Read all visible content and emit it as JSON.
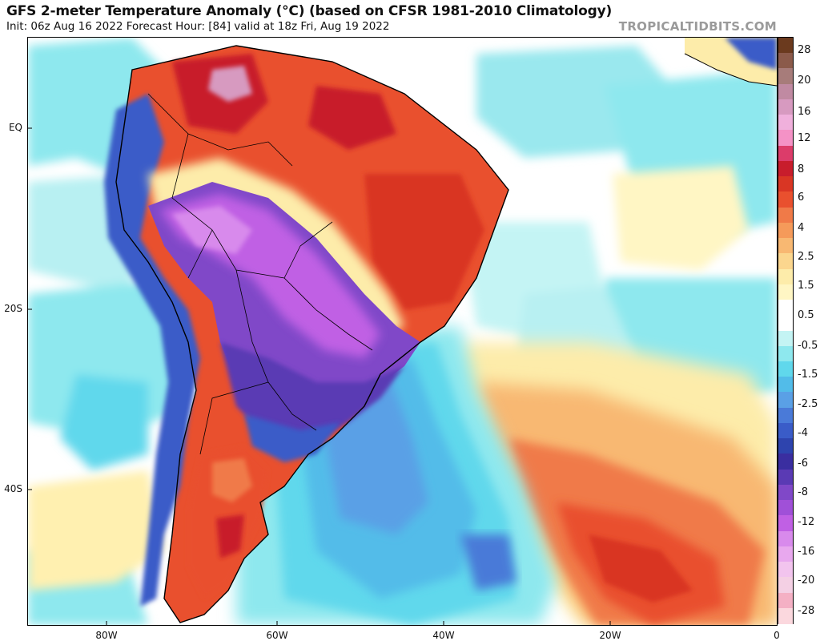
{
  "header": {
    "title": "GFS 2-meter Temperature Anomaly (°C) (based on CFSR 1981-2010 Climatology)",
    "subtitle": "Init: 06z Aug 16 2022   Forecast Hour: [84]   valid at 18z Fri, Aug 19 2022",
    "brand": "TROPICALTIDBITS.COM"
  },
  "axes": {
    "lat_labels": [
      "EQ",
      "20S",
      "40S"
    ],
    "lon_labels": [
      "80W",
      "60W",
      "40W",
      "20W",
      "0"
    ]
  },
  "colorbar": {
    "labels": [
      "28",
      "20",
      "16",
      "12",
      "8",
      "6",
      "4",
      "2.5",
      "1.5",
      "0.5",
      "-0.5",
      "-1.5",
      "-2.5",
      "-4",
      "-6",
      "-8",
      "-12",
      "-16",
      "-20",
      "-28"
    ],
    "colors": [
      "#6b3a1e",
      "#8b5a4a",
      "#a77c7a",
      "#c08aa2",
      "#d79ac0",
      "#f0b0dc",
      "#f492c6",
      "#dc3c6a",
      "#c81d2c",
      "#d93624",
      "#e9502e",
      "#f07a48",
      "#f59a5a",
      "#f8b872",
      "#fbd68e",
      "#fdecaa",
      "#fff6c4",
      "#ffffff",
      "#ffffff",
      "#c4f4f4",
      "#8ee8ee",
      "#60d8ec",
      "#52bce9",
      "#5aa0e6",
      "#4a7ad8",
      "#3a5cc8",
      "#2e44ae",
      "#3a2ea0",
      "#5a3ab4",
      "#8048c8",
      "#a050d8",
      "#c060e4",
      "#d88aec",
      "#e8a8ee",
      "#f2c4ee",
      "#f4d0e4",
      "#f4b0c4",
      "#fbd8de"
    ]
  },
  "palette": {
    "ocean_cyan": "#8ee8ee",
    "ocean_light": "#c4f4f4",
    "land_warm": "#e9502e",
    "land_hot": "#c81d2c",
    "cold_purple": "#a050d8",
    "cold_blue": "#3a5cc8",
    "ocean_warm": "#f07a48",
    "ocean_yellow": "#fdecaa"
  }
}
